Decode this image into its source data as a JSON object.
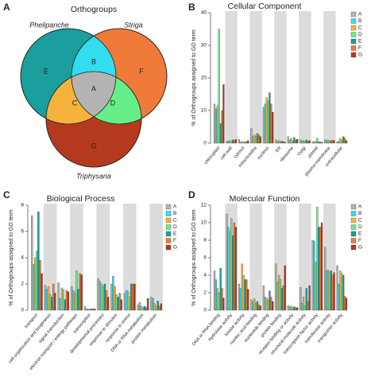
{
  "chart_data": [
    {
      "type": "venn",
      "panel": "A",
      "title": "Orthogroups",
      "sets": [
        "Phelipanche",
        "Striga",
        "Triphysaria"
      ],
      "regions": [
        "A",
        "B",
        "C",
        "D",
        "E",
        "F",
        "G"
      ],
      "region_colors": [
        "#b3b3b3",
        "#33ddf0",
        "#f5b33c",
        "#66ee88",
        "#1a9e9e",
        "#f07a3a",
        "#b5391f"
      ]
    },
    {
      "type": "bar",
      "panel": "B",
      "title": "Cellular Component",
      "ylabel": "% of Orthogroups assigned to GO term",
      "categories": [
        "chloroplast",
        "cell wall",
        "cytosol",
        "mitochondria",
        "nucleus",
        "ER",
        "ribosome",
        "Golgi",
        "plastid",
        "plasma membrane",
        "extracellular"
      ],
      "series": [
        {
          "name": "A",
          "color": "#b3b3b3",
          "values": [
            12,
            0.5,
            1.2,
            4.5,
            11,
            1,
            2,
            1,
            0.5,
            1,
            0.5
          ]
        },
        {
          "name": "B",
          "color": "#33ddf0",
          "values": [
            10.5,
            0.7,
            0.3,
            2,
            12,
            0.5,
            1,
            0.7,
            0.3,
            0.8,
            0.6
          ]
        },
        {
          "name": "C",
          "color": "#f5b33c",
          "values": [
            11.5,
            0.8,
            0.5,
            2.5,
            14,
            0.8,
            1.5,
            0.8,
            0.6,
            1,
            1.5
          ]
        },
        {
          "name": "D",
          "color": "#66ee88",
          "values": [
            35,
            0.6,
            0.4,
            2,
            13,
            0.5,
            0.8,
            0.5,
            1.5,
            0.7,
            1
          ]
        },
        {
          "name": "E",
          "color": "#1a9e9e",
          "values": [
            6,
            1,
            0.3,
            3,
            15.5,
            0.6,
            1.8,
            1,
            0.4,
            0.8,
            2
          ]
        },
        {
          "name": "F",
          "color": "#f07a3a",
          "values": [
            10,
            0.8,
            0.5,
            2.5,
            12,
            0.5,
            1,
            0.6,
            0.4,
            0.9,
            1.5
          ]
        },
        {
          "name": "G",
          "color": "#b5391f",
          "values": [
            18,
            1.2,
            0.8,
            2,
            9.5,
            0.3,
            1.2,
            0.8,
            0.3,
            0.8,
            0.8
          ]
        }
      ],
      "ylim": [
        0,
        40
      ],
      "yticks": [
        0,
        10,
        20,
        30,
        40
      ],
      "legend": "top-right"
    },
    {
      "type": "bar",
      "panel": "C",
      "title": "Biological Process",
      "ylabel": "% of Orthogroups assigned to GO term",
      "categories": [
        "transport",
        "cell organization and biogenesis",
        "signal transduction",
        "electron transport / energy pathways",
        "transcription",
        "developmental processes",
        "response to stimulus",
        "response to stress",
        "DNA or RNA metabolism",
        "protein metabolism"
      ],
      "series": [
        {
          "name": "A",
          "color": "#b3b3b3",
          "values": [
            7.2,
            1.9,
            2.1,
            1.8,
            0.3,
            2.4,
            2.0,
            1.3,
            0.4,
            1.0
          ]
        },
        {
          "name": "B",
          "color": "#33ddf0",
          "values": [
            3.5,
            1.6,
            0.9,
            1.5,
            0.1,
            2.2,
            2.6,
            1.5,
            0.6,
            0.9
          ]
        },
        {
          "name": "C",
          "color": "#f5b33c",
          "values": [
            4.0,
            1.8,
            1.7,
            1.3,
            0.1,
            2.0,
            1.8,
            1.4,
            0.3,
            0.5
          ]
        },
        {
          "name": "D",
          "color": "#66ee88",
          "values": [
            4.5,
            1.2,
            1.6,
            3.0,
            0.1,
            1.8,
            1.2,
            1.0,
            0.2,
            0.3
          ]
        },
        {
          "name": "E",
          "color": "#1a9e9e",
          "values": [
            7.5,
            1.0,
            0.8,
            1.6,
            0.1,
            2.0,
            1.0,
            2.0,
            0.3,
            0.7
          ]
        },
        {
          "name": "F",
          "color": "#f07a3a",
          "values": [
            3.8,
            2.0,
            1.5,
            2.8,
            0.1,
            1.5,
            1.3,
            2.0,
            0.2,
            0.3
          ]
        },
        {
          "name": "G",
          "color": "#b5391f",
          "values": [
            2.8,
            1.3,
            1.4,
            2.7,
            0.1,
            1.0,
            0.8,
            2.0,
            0.9,
            0.5
          ]
        }
      ],
      "ylim": [
        0,
        8
      ],
      "yticks": [
        0,
        2,
        4,
        6,
        8
      ],
      "legend": "top-right"
    },
    {
      "type": "bar",
      "panel": "D",
      "title": "Molecular Function",
      "ylabel": "% of Orthogroups assigned to GO term",
      "categories": [
        "DNA or RNA binding",
        "hydrolase activity",
        "kinase activity",
        "nucleic acid binding",
        "nucleotide binding",
        "protein binding",
        "receptor binding or activity",
        "structural molecule activity",
        "transcription factor activity",
        "transferase activity",
        "transporter activity"
      ],
      "series": [
        {
          "name": "A",
          "color": "#b3b3b3",
          "values": [
            4.5,
            11,
            3,
            1.2,
            2.8,
            5.3,
            0.5,
            2.6,
            8,
            7.2,
            5.1
          ]
        },
        {
          "name": "B",
          "color": "#33ddf0",
          "values": [
            3.5,
            9.5,
            2.5,
            1,
            1.5,
            3.2,
            0.4,
            0.8,
            7.9,
            4.5,
            3
          ]
        },
        {
          "name": "C",
          "color": "#f5b33c",
          "values": [
            2.5,
            9,
            5.3,
            1.3,
            1.4,
            4,
            0.5,
            1.5,
            5.5,
            4.6,
            4.5
          ]
        },
        {
          "name": "D",
          "color": "#66ee88",
          "values": [
            2,
            10.5,
            4,
            0.8,
            1.2,
            3.5,
            0.3,
            0.5,
            11.8,
            4.4,
            4.2
          ]
        },
        {
          "name": "E",
          "color": "#1a9e9e",
          "values": [
            4.8,
            8.5,
            3.5,
            1,
            2.2,
            2.5,
            0.4,
            2.5,
            9.5,
            4.5,
            4
          ]
        },
        {
          "name": "F",
          "color": "#f07a3a",
          "values": [
            2.5,
            10,
            3.5,
            0.6,
            1.5,
            2.8,
            0.3,
            1,
            9.5,
            4,
            1.6
          ]
        },
        {
          "name": "G",
          "color": "#b5391f",
          "values": [
            1.4,
            9.5,
            2.4,
            0.5,
            1,
            5.1,
            0.3,
            2.8,
            10,
            4.3,
            1.4
          ]
        }
      ],
      "ylim": [
        0,
        12
      ],
      "yticks": [
        0,
        2,
        4,
        6,
        8,
        10,
        12
      ],
      "legend": "top-right"
    }
  ]
}
